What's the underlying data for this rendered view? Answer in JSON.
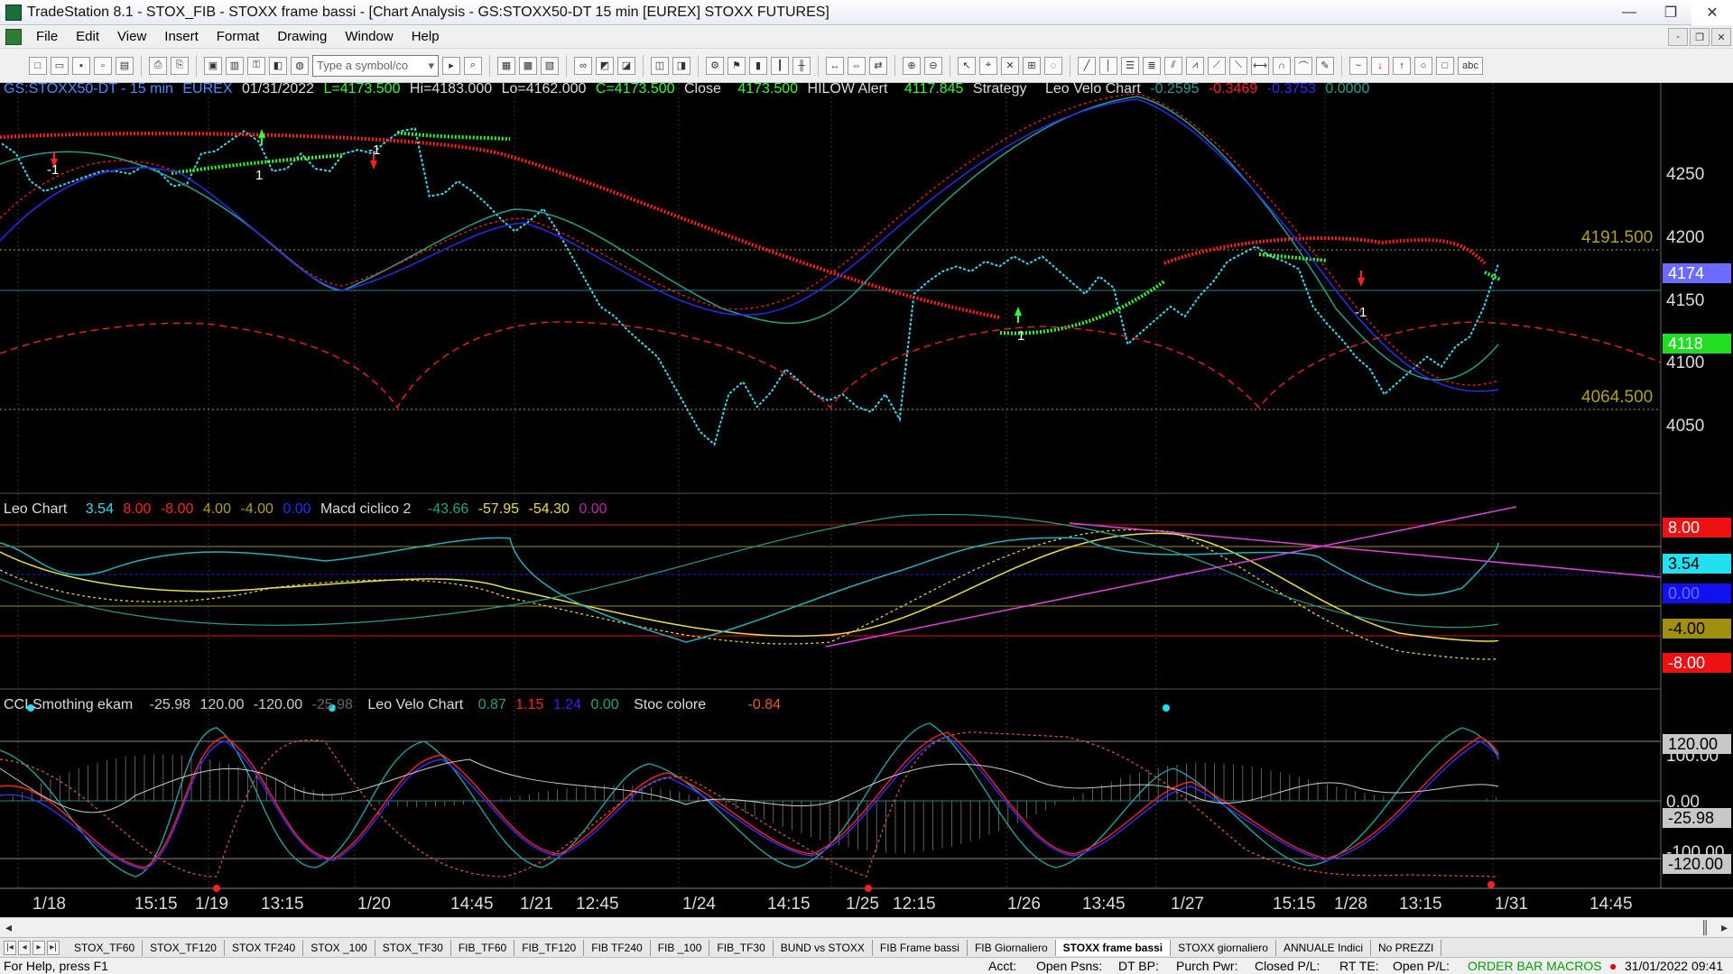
{
  "window": {
    "title": "TradeStation 8.1 - STOX_FIB - STOXX frame bassi - [Chart Analysis - GS:STOXX50-DT  15 min  [EUREX] STOXX FUTURES]",
    "minimize": "—",
    "maximize": "❐",
    "close": "✕"
  },
  "menu": {
    "items": [
      "File",
      "Edit",
      "View",
      "Insert",
      "Format",
      "Drawing",
      "Window",
      "Help"
    ],
    "mdi": [
      "-",
      "❐",
      "✕"
    ]
  },
  "toolbar": {
    "symbol_placeholder": "Type a symbol/co",
    "abc_label": "abc"
  },
  "header1": {
    "symbol": "GS:STOXX50-DT - 15 min",
    "exchange": "EUREX",
    "date": "01/31/2022",
    "last": "L=4173.500",
    "hi": "Hi=4183.000",
    "lo": "Lo=4162.000",
    "close_c": "C=4173.500",
    "close_label": "Close",
    "close_value": "4173.500",
    "hilow_label": "HILOW Alert",
    "hilow_value": "4117.845",
    "strategy_label": "Strategy",
    "velo_label": "Leo Velo Chart",
    "v1": "-0.2595",
    "v2": "-0.3469",
    "v3": "-0.3753",
    "v4": "0.0000"
  },
  "header2": {
    "leo_label": "Leo Chart",
    "l1": "3.54",
    "l2": "8.00",
    "l3": "-8.00",
    "l4": "4.00",
    "l5": "-4.00",
    "l6": "0.00",
    "macd_label": "Macd ciclico 2",
    "m1": "-43.66",
    "m2": "-57.95",
    "m3": "-54.30",
    "m4": "0.00"
  },
  "header3": {
    "cci_label": "CCI Smothing ekam",
    "c1": "-25.98",
    "c2": "120.00",
    "c3": "-120.00",
    "c4": "-25.98",
    "velo_label": "Leo Velo Chart",
    "v1": "0.87",
    "v2": "1.15",
    "v3": "1.24",
    "v4": "0.00",
    "stoc_label": "Stoc colore",
    "s1": "-0.84"
  },
  "price_axis": {
    "ticks": [
      "4250",
      "4200",
      "4150",
      "4100",
      "4050"
    ],
    "level_high": "4191.500",
    "level_low": "4064.500",
    "current": "4174",
    "hilow": "4118"
  },
  "osc_axis": {
    "p8": "8.00",
    "cur": "3.54",
    "zero": "0.00",
    "m4": "-4.00",
    "m8": "-8.00"
  },
  "cci_axis": {
    "p120": "120.00",
    "p100": "100.00",
    "zero": "0.00",
    "cur": "-25.98",
    "m100": "-100.00",
    "m120": "-120.00"
  },
  "time_axis": [
    "1/18",
    "15:15",
    "1/19",
    "13:15",
    "1/20",
    "14:45",
    "1/21",
    "12:45",
    "1/24",
    "14:15",
    "1/25",
    "12:15",
    "1/26",
    "13:45",
    "1/27",
    "15:15",
    "1/28",
    "13:15",
    "1/31",
    "14:45"
  ],
  "signals": [
    "-1",
    "1",
    "-1",
    "1",
    "1",
    "-1"
  ],
  "tabs": [
    "STOX_TF60",
    "STOX_TF120",
    "STOX TF240",
    "STOX _100",
    "STOX_TF30",
    "FIB_TF60",
    "FIB_TF120",
    "FIB TF240",
    "FIB _100",
    "FIB_TF30",
    "BUND vs STOXX",
    "FIB Frame bassi",
    "FIB Giornaliero",
    "STOXX frame bassi",
    "STOXX giornaliero",
    "ANNUALE Indici",
    "No PREZZI"
  ],
  "active_tab": "STOXX frame bassi",
  "status": {
    "help": "For Help, press F1",
    "acct": "Acct:",
    "open_psns": "Open Psns:",
    "dt_bp": "DT BP:",
    "purch_pwr": "Purch Pwr:",
    "closed_pl": "Closed P/L:",
    "rt_te": "RT TE:",
    "open_pl": "Open P/L:",
    "order_bar": "ORDER BAR  MACROS",
    "datetime": "31/01/2022 09:41"
  },
  "colors": {
    "price": "#3ad8f0",
    "red": "#ff2020",
    "green": "#30ff30",
    "blue": "#2020d0",
    "teal": "#20a090",
    "yellow": "#e8e040",
    "magenta": "#e040e0",
    "level": "#b0a020"
  }
}
